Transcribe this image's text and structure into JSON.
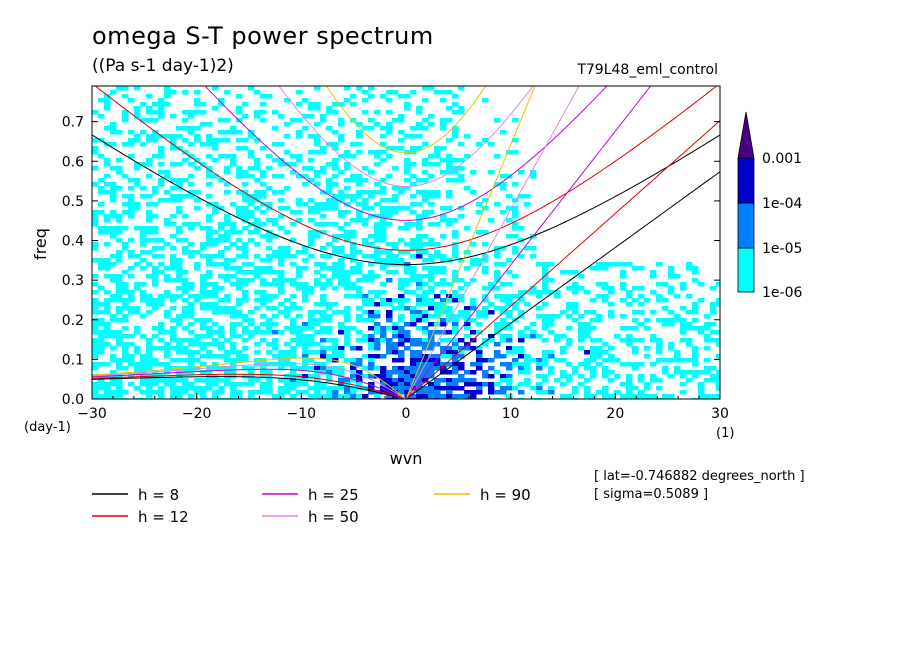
{
  "header": {
    "title": "omega S-T power spectrum",
    "units": "((Pa s-1 day-1)2)",
    "run_id": "T79L48_eml_control"
  },
  "info": {
    "lat": "[ lat=-0.746882 degrees_north ]",
    "sigma": "[ sigma=0.5089 ]"
  },
  "colors": {
    "c1": "#00ffff",
    "c2": "#0080ff",
    "c3": "#0000cc",
    "c4": "#4b0082",
    "h8": "#000000",
    "h12": "#e00000",
    "h25": "#cc00cc",
    "h50": "#dd88dd",
    "h90": "#e8c000"
  },
  "chart_data": {
    "type": "heatmap",
    "title": "omega S-T power spectrum",
    "subtitle": "((Pa s-1 day-1)2)",
    "xlabel": "wvn",
    "ylabel": "freq",
    "x_unit_label": "(1)",
    "y_unit_label": "(day-1)",
    "xlim": [
      -30,
      30
    ],
    "ylim": [
      0,
      0.79
    ],
    "xticks": [
      "-30",
      "-20",
      "-10",
      "0",
      "10",
      "20",
      "30"
    ],
    "yticks": [
      "0.0",
      "0.1",
      "0.2",
      "0.3",
      "0.4",
      "0.5",
      "0.6",
      "0.7"
    ],
    "colorbar": {
      "labels": [
        "1e-06",
        "1e-05",
        "1e-04",
        "0.001"
      ],
      "levels": [
        1e-06,
        1e-05,
        0.0001,
        0.001
      ]
    },
    "dispersion_curves": [
      {
        "label": "h =  8",
        "h": 8
      },
      {
        "label": "h = 12",
        "h": 12
      },
      {
        "label": "h = 25",
        "h": 25
      },
      {
        "label": "h = 50",
        "h": 50
      },
      {
        "label": "h = 90",
        "h": 90
      }
    ]
  }
}
